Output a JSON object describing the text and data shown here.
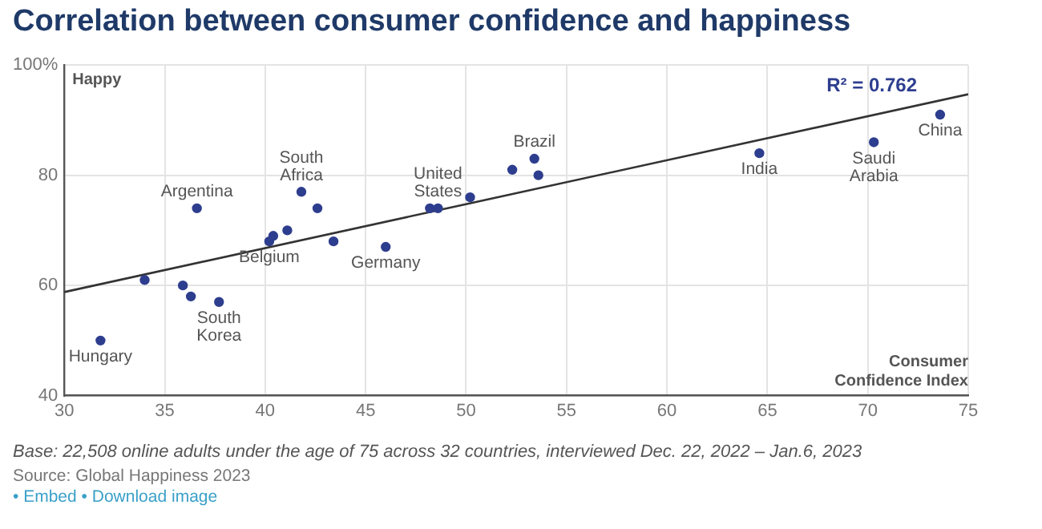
{
  "chart_data": {
    "type": "scatter",
    "title": "Correlation between consumer confidence and happiness",
    "xlabel": "Consumer Confidence Index",
    "ylabel": "Happy",
    "series": [
      {
        "color": "#2e3e8f",
        "marker": "circle",
        "x": [
          31.8,
          34.0,
          35.9,
          36.3,
          36.6,
          37.7,
          40.2,
          40.4,
          41.1,
          41.8,
          42.6,
          43.4,
          46.0,
          48.2,
          48.6,
          50.2,
          52.3,
          53.4,
          53.6,
          64.6,
          70.3,
          73.6
        ],
        "values": [
          50,
          61,
          60,
          58,
          74,
          57,
          68,
          69,
          70,
          77,
          74,
          68,
          67,
          74,
          74,
          76,
          81,
          83,
          80,
          84,
          86,
          91
        ]
      },
      {
        "type": "line",
        "color": "#333333",
        "x": [
          30,
          75
        ],
        "values": [
          58.8,
          94.7
        ]
      }
    ],
    "xlim": [
      30,
      75
    ],
    "xticks": [
      30,
      35,
      40,
      45,
      50,
      55,
      60,
      65,
      70,
      75
    ],
    "ylim": [
      40,
      100
    ],
    "yticks": [
      40,
      60,
      80,
      {
        "value": 100,
        "label": "100%"
      }
    ],
    "grid": true,
    "legend": false,
    "annotations": [
      {
        "text": "Hungary",
        "x": 31.8,
        "y": 50
      },
      {
        "text": "Argentina",
        "x": 36.6,
        "y": 74
      },
      {
        "text": "South Korea",
        "x": 37.7,
        "y": 57
      },
      {
        "text": "Belgium",
        "x": 40.2,
        "y": 68
      },
      {
        "text": "South Africa",
        "x": 41.8,
        "y": 77
      },
      {
        "text": "Germany",
        "x": 46.0,
        "y": 67
      },
      {
        "text": "United States",
        "x": 48.6,
        "y": 74
      },
      {
        "text": "Brazil",
        "x": 53.4,
        "y": 83
      },
      {
        "text": "India",
        "x": 64.6,
        "y": 84
      },
      {
        "text": "Saudi Arabia",
        "x": 70.3,
        "y": 86
      },
      {
        "text": "China",
        "x": 73.6,
        "y": 91
      },
      "R² = 0.762",
      "Base: 22,508 online adults under the age of 75 across 32 countries, interviewed Dec. 22, 2022 – Jan.6, 2023",
      "Source: Global Happiness 2023",
      "• Embed • Download image"
    ]
  }
}
